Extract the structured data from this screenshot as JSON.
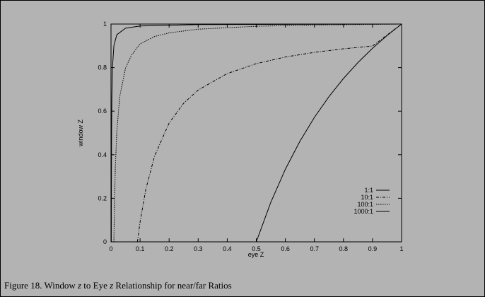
{
  "caption": {
    "prefix": "Figure 18. Window ",
    "var1": "z",
    "mid": " to Eye ",
    "var2": "z",
    "suffix": " Relationship for near/far Ratios"
  },
  "chart_data": {
    "type": "line",
    "xlabel": "eye Z",
    "ylabel": "window Z",
    "xlim": [
      0,
      1
    ],
    "ylim": [
      0,
      1
    ],
    "x_ticks": [
      "0",
      "0.1",
      "0.2",
      "0.3",
      "0.4",
      "0.5",
      "0.6",
      "0.7",
      "0.8",
      "0.9",
      "1"
    ],
    "y_ticks": [
      "0",
      "0.2",
      "0.4",
      "0.6",
      "0.8",
      "1"
    ],
    "grid": false,
    "legend_position": "bottom-right",
    "series": [
      {
        "name": "1:1",
        "style": "solid",
        "points": [
          [
            0.5,
            0
          ],
          [
            0.55,
            0.1818
          ],
          [
            0.6,
            0.3333
          ],
          [
            0.65,
            0.4615
          ],
          [
            0.7,
            0.5714
          ],
          [
            0.75,
            0.6667
          ],
          [
            0.8,
            0.75
          ],
          [
            0.85,
            0.8235
          ],
          [
            0.9,
            0.8889
          ],
          [
            0.95,
            0.9474
          ],
          [
            1,
            1
          ]
        ]
      },
      {
        "name": "10:1",
        "style": "dashdot",
        "points": [
          [
            0.0909,
            0
          ],
          [
            0.1,
            0.0909
          ],
          [
            0.12,
            0.2424
          ],
          [
            0.15,
            0.3939
          ],
          [
            0.2,
            0.5455
          ],
          [
            0.25,
            0.6364
          ],
          [
            0.3,
            0.697
          ],
          [
            0.4,
            0.7727
          ],
          [
            0.5,
            0.8182
          ],
          [
            0.6,
            0.8485
          ],
          [
            0.7,
            0.8701
          ],
          [
            0.8,
            0.8864
          ],
          [
            0.9,
            0.899
          ],
          [
            1,
            1
          ]
        ]
      },
      {
        "name": "100:1",
        "style": "dotted",
        "points": [
          [
            0.0099,
            0
          ],
          [
            0.012,
            0.1768
          ],
          [
            0.015,
            0.3434
          ],
          [
            0.02,
            0.5051
          ],
          [
            0.03,
            0.6667
          ],
          [
            0.05,
            0.798
          ],
          [
            0.07,
            0.8557
          ],
          [
            0.1,
            0.9091
          ],
          [
            0.15,
            0.9428
          ],
          [
            0.2,
            0.9596
          ],
          [
            0.3,
            0.9764
          ],
          [
            0.5,
            0.9899
          ],
          [
            0.7,
            0.9957
          ],
          [
            1,
            1
          ]
        ]
      },
      {
        "name": "1000:1",
        "style": "solid",
        "points": [
          [
            0.001,
            0
          ],
          [
            0.0012,
            0.1668
          ],
          [
            0.0015,
            0.3337
          ],
          [
            0.002,
            0.5005
          ],
          [
            0.003,
            0.6673
          ],
          [
            0.005,
            0.8008
          ],
          [
            0.01,
            0.9009
          ],
          [
            0.02,
            0.951
          ],
          [
            0.05,
            0.981
          ],
          [
            0.1,
            0.991
          ],
          [
            0.3,
            0.9977
          ],
          [
            1,
            1
          ]
        ]
      }
    ]
  }
}
